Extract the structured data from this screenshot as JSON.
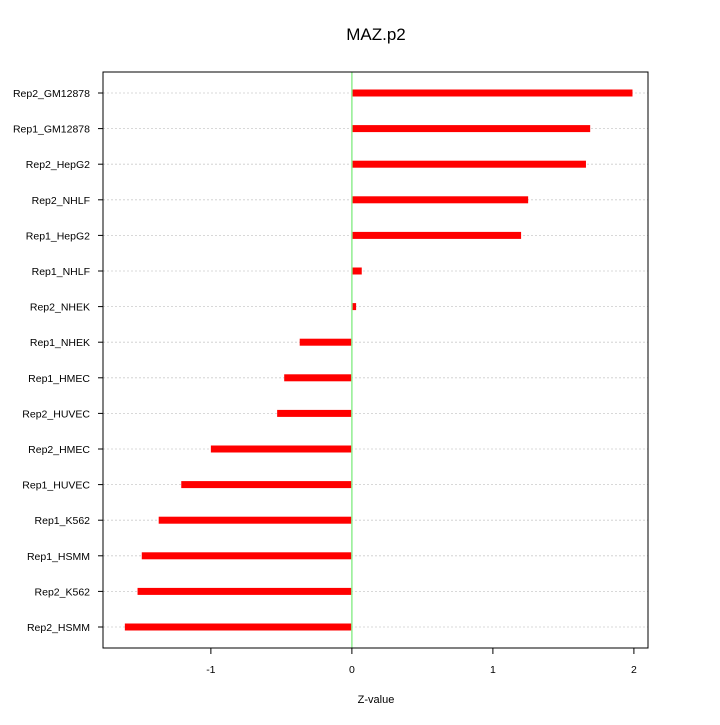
{
  "chart_data": {
    "type": "bar",
    "orientation": "horizontal",
    "title": "MAZ.p2",
    "xlabel": "Z-value",
    "ylabel": "",
    "categories": [
      "Rep2_GM12878",
      "Rep1_GM12878",
      "Rep2_HepG2",
      "Rep2_NHLF",
      "Rep1_HepG2",
      "Rep1_NHLF",
      "Rep2_NHEK",
      "Rep1_NHEK",
      "Rep1_HMEC",
      "Rep2_HUVEC",
      "Rep2_HMEC",
      "Rep1_HUVEC",
      "Rep1_K562",
      "Rep1_HSMM",
      "Rep2_K562",
      "Rep2_HSMM"
    ],
    "values": [
      1.99,
      1.69,
      1.66,
      1.25,
      1.2,
      0.07,
      0.03,
      -0.37,
      -0.48,
      -0.53,
      -1.0,
      -1.21,
      -1.37,
      -1.49,
      -1.52,
      -1.61
    ],
    "xlim": [
      -1.765,
      2.1
    ],
    "x_ticks": [
      -1,
      0,
      1,
      2
    ],
    "x_tick_labels": [
      "-1",
      "0",
      "1",
      "2"
    ],
    "reference_line": 0,
    "grid": "horizontal dotted",
    "legend": "none",
    "colors": {
      "bar": "#ff0000",
      "zero_line": "#90ee90",
      "grid": "#cccccc",
      "axis": "#000000"
    }
  }
}
